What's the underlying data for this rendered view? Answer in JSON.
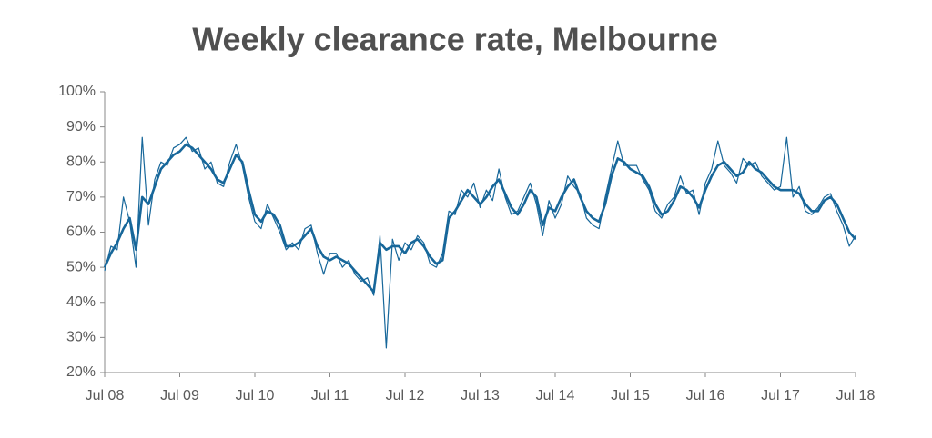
{
  "chart_data": {
    "type": "line",
    "title": "Weekly clearance rate, Melbourne",
    "categories": [
      "Jul 08",
      null,
      null,
      null,
      null,
      null,
      null,
      null,
      null,
      null,
      null,
      null,
      "Jul 09",
      null,
      null,
      null,
      null,
      null,
      null,
      null,
      null,
      null,
      null,
      null,
      "Jul 10",
      null,
      null,
      null,
      null,
      null,
      null,
      null,
      null,
      null,
      null,
      null,
      "Jul 11",
      null,
      null,
      null,
      null,
      null,
      null,
      null,
      null,
      null,
      null,
      null,
      "Jul 12",
      null,
      null,
      null,
      null,
      null,
      null,
      null,
      null,
      null,
      null,
      null,
      "Jul 13",
      null,
      null,
      null,
      null,
      null,
      null,
      null,
      null,
      null,
      null,
      null,
      "Jul 14",
      null,
      null,
      null,
      null,
      null,
      null,
      null,
      null,
      null,
      null,
      null,
      "Jul 15",
      null,
      null,
      null,
      null,
      null,
      null,
      null,
      null,
      null,
      null,
      null,
      "Jul 16",
      null,
      null,
      null,
      null,
      null,
      null,
      null,
      null,
      null,
      null,
      null,
      "Jul 17",
      null,
      null,
      null,
      null,
      null,
      null,
      null,
      null,
      null,
      null,
      null,
      "Jul 18"
    ],
    "series": [
      {
        "color": "#17679a",
        "width": 1.2,
        "values": [
          49,
          56,
          55,
          70,
          63,
          50,
          87,
          62,
          75,
          80,
          79,
          84,
          85,
          87,
          83,
          84,
          78,
          80,
          74,
          73,
          80,
          85,
          79,
          70,
          63,
          61,
          68,
          64,
          60,
          55,
          57,
          55,
          61,
          62,
          54,
          48,
          54,
          54,
          50,
          52,
          48,
          46,
          47,
          42,
          59,
          27,
          58,
          52,
          57,
          55,
          59,
          57,
          51,
          50,
          54,
          66,
          65,
          72,
          70,
          74,
          67,
          72,
          69,
          78,
          70,
          65,
          66,
          70,
          74,
          68,
          59,
          69,
          64,
          68,
          76,
          73,
          71,
          64,
          62,
          61,
          70,
          78,
          86,
          79,
          79,
          79,
          75,
          72,
          66,
          64,
          68,
          70,
          76,
          71,
          72,
          65,
          74,
          78,
          86,
          79,
          77,
          74,
          81,
          79,
          80,
          76,
          74,
          72,
          73,
          87,
          70,
          73,
          66,
          65,
          67,
          70,
          71,
          66,
          62,
          56,
          59
        ]
      },
      {
        "color": "#17679a",
        "width": 2.6,
        "values": [
          50,
          54,
          57,
          61,
          64,
          55,
          70,
          68,
          73,
          78,
          80,
          82,
          83,
          85,
          84,
          82,
          80,
          78,
          75,
          74,
          78,
          82,
          80,
          72,
          65,
          63,
          66,
          65,
          62,
          56,
          56,
          57,
          59,
          61,
          56,
          53,
          52,
          53,
          52,
          51,
          49,
          47,
          45,
          43,
          57,
          55,
          56,
          56,
          54,
          57,
          58,
          56,
          53,
          51,
          52,
          64,
          66,
          69,
          72,
          70,
          68,
          70,
          73,
          75,
          71,
          67,
          65,
          68,
          72,
          70,
          62,
          67,
          66,
          70,
          73,
          75,
          70,
          66,
          64,
          63,
          68,
          76,
          81,
          80,
          78,
          77,
          76,
          73,
          68,
          65,
          66,
          69,
          73,
          72,
          70,
          67,
          72,
          76,
          79,
          80,
          78,
          76,
          77,
          80,
          78,
          77,
          75,
          73,
          72,
          72,
          72,
          71,
          68,
          66,
          66,
          69,
          70,
          68,
          64,
          60,
          58
        ]
      }
    ],
    "ylim": [
      20,
      100
    ],
    "yticks": [
      {
        "value": 20,
        "label": "20%"
      },
      {
        "value": 30,
        "label": "30%"
      },
      {
        "value": 40,
        "label": "40%"
      },
      {
        "value": 50,
        "label": "50%"
      },
      {
        "value": 60,
        "label": "60%"
      },
      {
        "value": 70,
        "label": "70%"
      },
      {
        "value": 80,
        "label": "80%"
      },
      {
        "value": 90,
        "label": "90%"
      },
      {
        "value": 100,
        "label": "100%"
      }
    ],
    "grid": false
  }
}
